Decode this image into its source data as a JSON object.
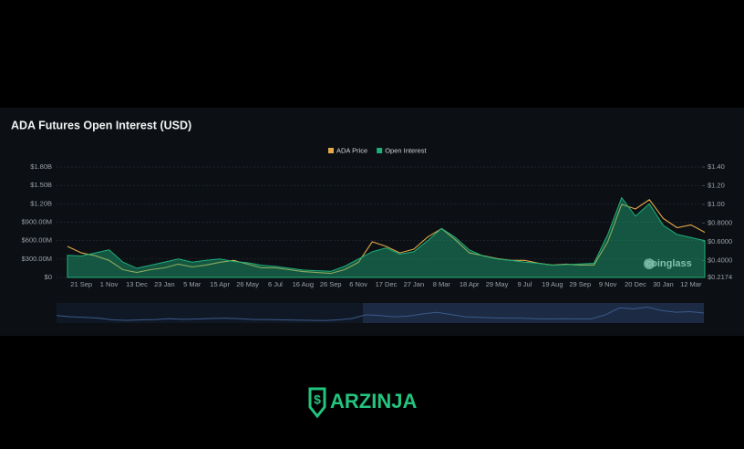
{
  "chart_data": {
    "type": "line",
    "title": "ADA Futures Open Interest (USD)",
    "categories": [
      null,
      "21 Sep",
      null,
      "1 Nov",
      null,
      "13 Dec",
      null,
      "23 Jan",
      null,
      "5 Mar",
      null,
      "15 Apr",
      null,
      "26 May",
      null,
      "6 Jul",
      null,
      "16 Aug",
      null,
      "26 Sep",
      null,
      "6 Nov",
      null,
      "17 Dec",
      null,
      "27 Jan",
      null,
      "8 Mar",
      null,
      "18 Apr",
      null,
      "29 May",
      null,
      "9 Jul",
      null,
      "19 Aug",
      null,
      "29 Sep",
      null,
      "9 Nov",
      null,
      "20 Dec",
      null,
      "30 Jan",
      null,
      "12 Mar",
      null
    ],
    "series": [
      {
        "name": "ADA Price",
        "color": "#e3a948",
        "axis": "y2",
        "values": [
          0.55,
          0.48,
          0.45,
          0.4,
          0.3,
          0.27,
          0.3,
          0.32,
          0.36,
          0.33,
          0.35,
          0.38,
          0.4,
          0.36,
          0.32,
          0.32,
          0.3,
          0.28,
          0.27,
          0.26,
          0.3,
          0.38,
          0.6,
          0.55,
          0.48,
          0.52,
          0.65,
          0.74,
          0.62,
          0.48,
          0.45,
          0.42,
          0.4,
          0.4,
          0.37,
          0.35,
          0.36,
          0.35,
          0.35,
          0.6,
          1.0,
          0.95,
          1.05,
          0.85,
          0.75,
          0.78,
          0.7
        ]
      },
      {
        "name": "Open Interest",
        "color": "#1fae78",
        "values": [
          360000000,
          350000000,
          400000000,
          450000000,
          250000000,
          150000000,
          200000000,
          250000000,
          300000000,
          250000000,
          280000000,
          300000000,
          260000000,
          240000000,
          200000000,
          180000000,
          150000000,
          120000000,
          110000000,
          100000000,
          180000000,
          300000000,
          420000000,
          480000000,
          380000000,
          420000000,
          600000000,
          800000000,
          650000000,
          450000000,
          350000000,
          300000000,
          280000000,
          250000000,
          230000000,
          200000000,
          210000000,
          220000000,
          230000000,
          700000000,
          1300000000,
          1000000000,
          1200000000,
          850000000,
          700000000,
          650000000,
          600000000
        ]
      }
    ],
    "ylim": [
      0,
      1800000000
    ],
    "yticks": [
      {
        "value": 0,
        "label": "$0"
      },
      {
        "value": 300000000,
        "label": "$300.00M"
      },
      {
        "value": 600000000,
        "label": "$600.00M"
      },
      {
        "value": 900000000,
        "label": "$900.00M"
      },
      {
        "value": 1200000000,
        "label": "$1.20B"
      },
      {
        "value": 1500000000,
        "label": "$1.50B"
      },
      {
        "value": 1800000000,
        "label": "$1.80B"
      }
    ],
    "y2lim": [
      0.2174,
      1.4
    ],
    "y2ticks": [
      {
        "value": 0.2174,
        "label": "$0.2174"
      },
      {
        "value": 0.4,
        "label": "$0.4000"
      },
      {
        "value": 0.6,
        "label": "$0.6000"
      },
      {
        "value": 0.8,
        "label": "$0.8000"
      },
      {
        "value": 1.0,
        "label": "$1.00"
      },
      {
        "value": 1.2,
        "label": "$1.20"
      },
      {
        "value": 1.4,
        "label": "$1.40"
      }
    ],
    "grid": true,
    "legend": "top",
    "watermark": "coinglass"
  },
  "footer": {
    "brand": "ARZINJA"
  }
}
